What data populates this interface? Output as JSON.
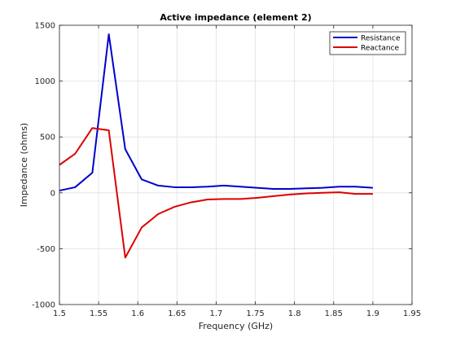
{
  "chart_data": {
    "type": "line",
    "title": "Active impedance (element 2)",
    "xlabel": "Frequency (GHz)",
    "ylabel": "Impedance (ohms)",
    "xlim": [
      1.5,
      1.95
    ],
    "ylim": [
      -1000,
      1500
    ],
    "xticks": [
      "1.5",
      "1.55",
      "1.6",
      "1.65",
      "1.7",
      "1.75",
      "1.8",
      "1.85",
      "1.9",
      "1.95"
    ],
    "yticks": [
      "-1000",
      "-500",
      "0",
      "500",
      "1000",
      "1500"
    ],
    "grid": true,
    "legend_position": "top-right",
    "x": [
      1.5,
      1.52,
      1.542,
      1.563,
      1.584,
      1.605,
      1.626,
      1.647,
      1.668,
      1.689,
      1.71,
      1.731,
      1.752,
      1.773,
      1.794,
      1.815,
      1.836,
      1.857,
      1.878,
      1.9
    ],
    "series": [
      {
        "name": "Resistance",
        "color": "#0000cc",
        "values": [
          20,
          50,
          180,
          1420,
          390,
          120,
          65,
          50,
          50,
          55,
          65,
          55,
          45,
          35,
          35,
          40,
          45,
          55,
          55,
          45
        ]
      },
      {
        "name": "Reactance",
        "color": "#dd0000",
        "values": [
          250,
          350,
          580,
          560,
          -580,
          -310,
          -190,
          -125,
          -85,
          -60,
          -55,
          -55,
          -45,
          -30,
          -15,
          -5,
          0,
          5,
          -10,
          -10
        ]
      }
    ]
  }
}
